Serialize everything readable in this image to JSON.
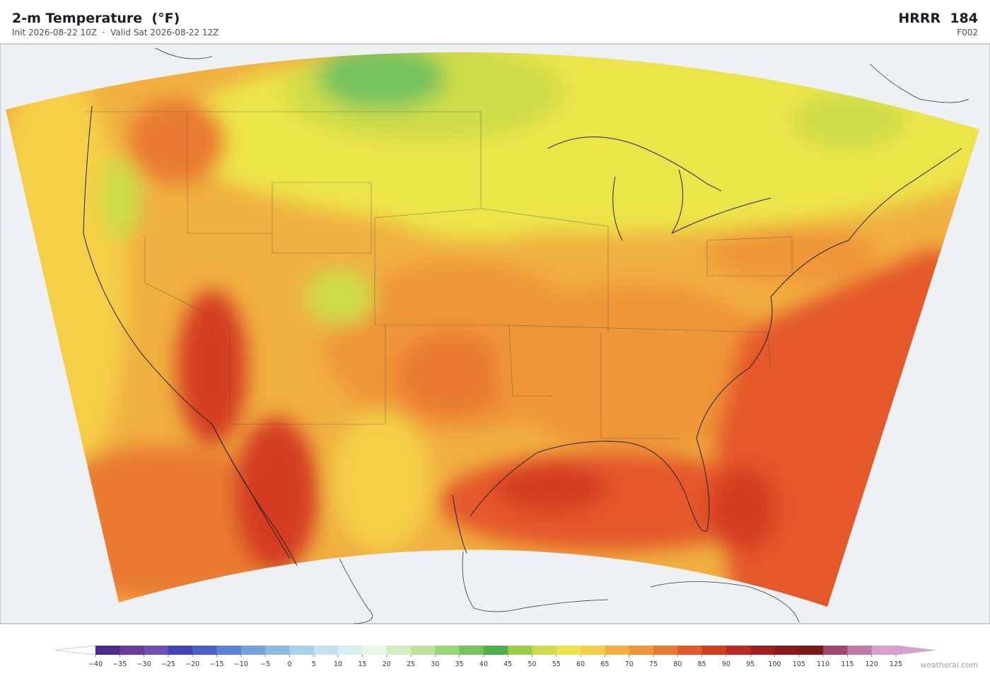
{
  "header": {
    "title": "2-m Temperature  (°F)",
    "subtitle": "Init 2026-08-22 10Z  ·  Valid Sat 2026-08-22 12Z",
    "model": "HRRR  184",
    "forecast_hour": "F002"
  },
  "colorbar": {
    "ticks": [
      {
        "value": -40,
        "label": "−40"
      },
      {
        "value": -35,
        "label": "−35"
      },
      {
        "value": -30,
        "label": "−30"
      },
      {
        "value": -25,
        "label": "−25"
      },
      {
        "value": -20,
        "label": "−20"
      },
      {
        "value": -15,
        "label": "−15"
      },
      {
        "value": -10,
        "label": "−10"
      },
      {
        "value": -5,
        "label": "−5"
      },
      0,
      5,
      10,
      15,
      20,
      25,
      30,
      35,
      40,
      45,
      50,
      55,
      60,
      65,
      70,
      75,
      80,
      85,
      90,
      95,
      100,
      105,
      110,
      115,
      120,
      125
    ],
    "colors": [
      "#4b2a8a",
      "#6a3d9a",
      "#6f4fb5",
      "#4444b8",
      "#4a5fc8",
      "#5b82d4",
      "#74a0dc",
      "#8db9e0",
      "#a8d0e8",
      "#c1e2ee",
      "#d8f0f2",
      "#e6f5e6",
      "#d4ecc0",
      "#bde39a",
      "#98d67a",
      "#74c35e",
      "#4caf4a",
      "#9acd46",
      "#cddc48",
      "#ece54a",
      "#f5cf46",
      "#f3b03e",
      "#ef9638",
      "#ea7a30",
      "#e4582a",
      "#d43c22",
      "#bf2a20",
      "#a01f1c",
      "#8a1a1a",
      "#7a1818",
      "#a0486e",
      "#bf78a8",
      "#d8a0cc"
    ]
  },
  "credit": "weatherai.com"
}
